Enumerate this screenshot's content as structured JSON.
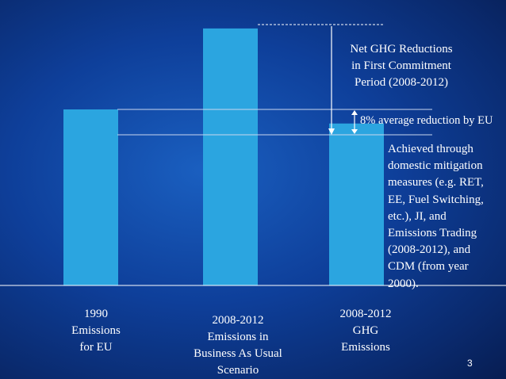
{
  "chart_data": {
    "type": "bar",
    "categories": [
      "1990\nEmissions\nfor EU",
      "2008-2012\nEmissions in\nBusiness As Usual\nScenario",
      "2008-2012\nGHG\nEmissions"
    ],
    "values": [
      100,
      146,
      92
    ],
    "title": "",
    "xlabel": "",
    "ylabel": "",
    "ylim": [
      0,
      150
    ],
    "grid": false,
    "bar_color": "#2ba5e0",
    "annotations": {
      "net_reduction": "Net GHG Reductions\nin First Commitment\nPeriod (2008-2012)",
      "eu_reduction": "8% average reduction by EU",
      "achieved": "Achieved through\ndomestic mitigation\nmeasures (e.g. RET,\nEE, Fuel Switching,\netc.), JI, and\nEmissions Trading\n(2008-2012), and\nCDM (from year\n2000)."
    }
  },
  "page_number": "3",
  "colors": {
    "background": "#0e3f9a",
    "bar": "#2ba5e0",
    "text": "#ffffff"
  }
}
